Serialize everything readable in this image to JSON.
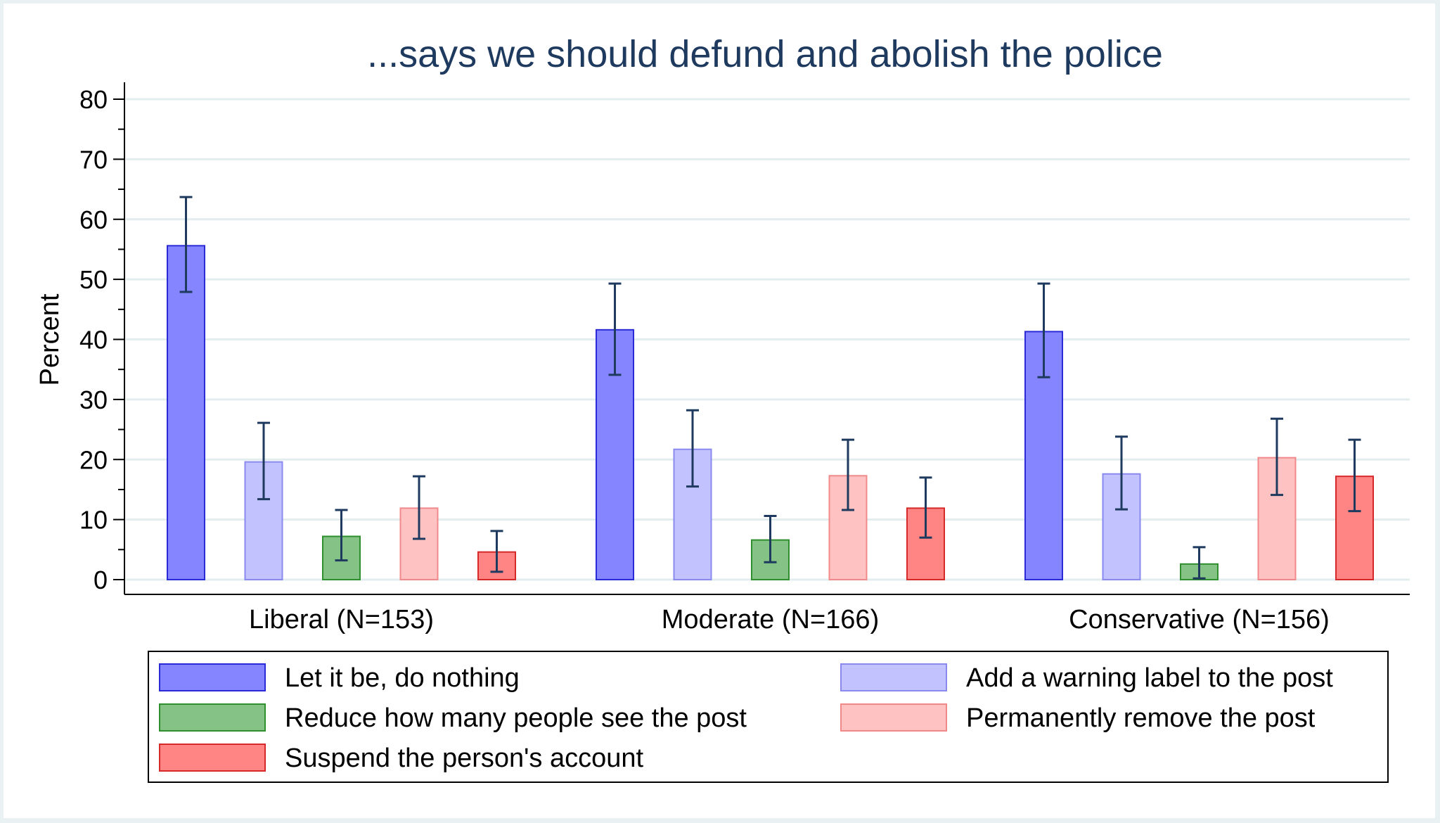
{
  "chart_data": {
    "type": "bar",
    "title": "...says we should defund and abolish the police",
    "xlabel": "",
    "ylabel": "Percent",
    "ylim": [
      0,
      80
    ],
    "yticks": [
      0,
      10,
      20,
      30,
      40,
      50,
      60,
      70,
      80
    ],
    "grid": true,
    "legend_position": "bottom",
    "categories": [
      "Liberal (N=153)",
      "Moderate (N=166)",
      "Conservative (N=156)"
    ],
    "series": [
      {
        "name": "Let it be, do nothing",
        "fill": "#8585ff",
        "stroke": "#2a2ad6",
        "values": [
          55.6,
          41.6,
          41.3
        ],
        "ci_low": [
          47.9,
          34.1,
          33.7
        ],
        "ci_high": [
          63.7,
          49.3,
          49.3
        ]
      },
      {
        "name": "Add a warning label to the post",
        "fill": "#c2c2ff",
        "stroke": "#8a8aee",
        "values": [
          19.6,
          21.7,
          17.6
        ],
        "ci_low": [
          13.4,
          15.5,
          11.7
        ],
        "ci_high": [
          26.1,
          28.2,
          23.8
        ]
      },
      {
        "name": "Reduce how many people see the post",
        "fill": "#85c285",
        "stroke": "#2f8f2f",
        "values": [
          7.2,
          6.6,
          2.6
        ],
        "ci_low": [
          3.2,
          2.9,
          0.2
        ],
        "ci_high": [
          11.6,
          10.6,
          5.4
        ]
      },
      {
        "name": "Permanently remove the post",
        "fill": "#ffc2c2",
        "stroke": "#f08a8a",
        "values": [
          11.9,
          17.3,
          20.3
        ],
        "ci_low": [
          6.8,
          11.6,
          14.1
        ],
        "ci_high": [
          17.2,
          23.3,
          26.8
        ]
      },
      {
        "name": "Suspend the person's account",
        "fill": "#ff8585",
        "stroke": "#d62a2a",
        "values": [
          4.6,
          11.9,
          17.2
        ],
        "ci_low": [
          1.3,
          7.0,
          11.4
        ],
        "ci_high": [
          8.1,
          17.0,
          23.3
        ]
      }
    ]
  }
}
